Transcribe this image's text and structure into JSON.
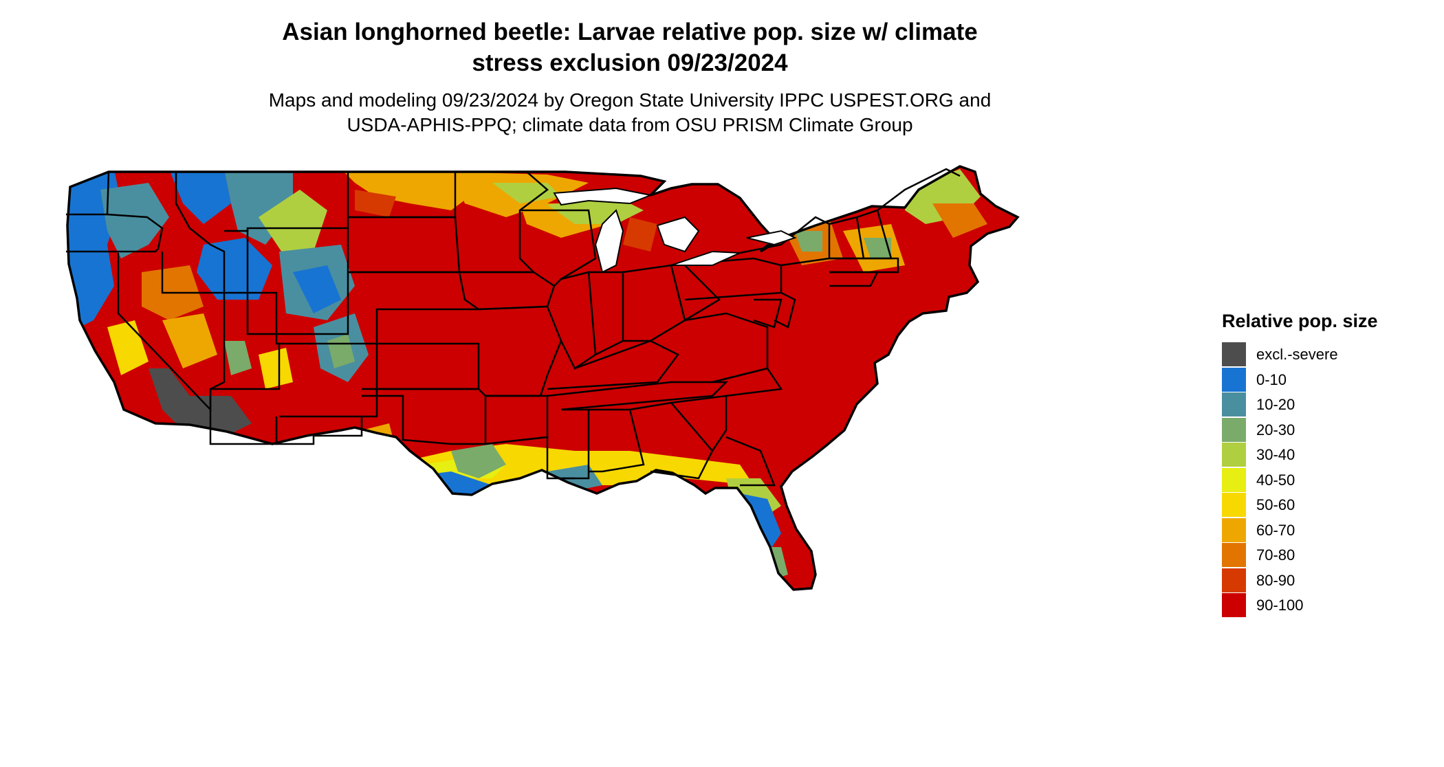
{
  "title": {
    "line1": "Asian longhorned beetle: Larvae relative pop. size w/ climate",
    "line2": "stress exclusion 09/23/2024"
  },
  "subtitle": {
    "line1": "Maps and modeling 09/23/2024 by Oregon State University IPPC USPEST.ORG and",
    "line2": "USDA-APHIS-PPQ; climate data from OSU PRISM Climate Group"
  },
  "legend": {
    "title": "Relative pop. size",
    "items": [
      {
        "label": "excl.-severe",
        "color": "#4d4d4d"
      },
      {
        "label": "0-10",
        "color": "#1874d2"
      },
      {
        "label": "10-20",
        "color": "#4a8fa0"
      },
      {
        "label": "20-30",
        "color": "#7aab6a"
      },
      {
        "label": "30-40",
        "color": "#b0cf40"
      },
      {
        "label": "40-50",
        "color": "#e6ee12"
      },
      {
        "label": "50-60",
        "color": "#f7d800"
      },
      {
        "label": "60-70",
        "color": "#eea700"
      },
      {
        "label": "70-80",
        "color": "#e27500"
      },
      {
        "label": "80-90",
        "color": "#d63a00"
      },
      {
        "label": "90-100",
        "color": "#cc0000"
      }
    ]
  },
  "map": {
    "region": "Contiguous United States",
    "base_class": "90-100",
    "regions_by_class": [
      {
        "area": "Pacific Northwest coast and Cascades",
        "class": "0-10"
      },
      {
        "area": "Northern Rockies (Idaho, Montana)",
        "class": "10-20"
      },
      {
        "area": "Wyoming and Colorado Rockies",
        "class": "10-20"
      },
      {
        "area": "Northern Minnesota and North Dakota",
        "class": "60-70"
      },
      {
        "area": "Upper Peninsula of Michigan",
        "class": "30-40"
      },
      {
        "area": "Northern Maine",
        "class": "30-40"
      },
      {
        "area": "Texas Gulf Coast",
        "class": "0-10"
      },
      {
        "area": "Gulf Coast band",
        "class": "50-60"
      },
      {
        "area": "Central Florida",
        "class": "0-10"
      },
      {
        "area": "Southern California / Arizona deserts",
        "class": "excl.-severe"
      }
    ]
  }
}
